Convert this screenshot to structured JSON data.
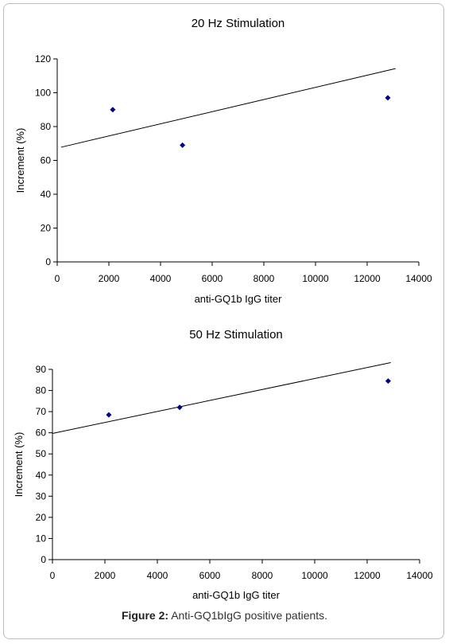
{
  "figure": {
    "caption_label": "Figure 2:",
    "caption_text": "Anti-GQ1bIgG positive patients."
  },
  "chart_data": [
    {
      "type": "scatter",
      "title": "20 Hz Stimulation",
      "xlabel": "anti-GQ1b IgG titer",
      "ylabel": "Increment (%)",
      "xlim": [
        0,
        14000
      ],
      "ylim": [
        0,
        120
      ],
      "xticks": [
        0,
        2000,
        4000,
        6000,
        8000,
        10000,
        12000,
        14000
      ],
      "yticks": [
        0,
        20,
        40,
        60,
        80,
        100,
        120
      ],
      "grid": false,
      "marker_color": "#00008b",
      "points": [
        {
          "x": 2150,
          "y": 90
        },
        {
          "x": 4850,
          "y": 69
        },
        {
          "x": 12800,
          "y": 97
        }
      ],
      "trendline": {
        "x": [
          150,
          13100
        ],
        "y": [
          67.8,
          114.3
        ]
      }
    },
    {
      "type": "scatter",
      "title": "50 Hz Stimulation",
      "xlabel": "anti-GQ1b IgG titer",
      "ylabel": "Increment (%)",
      "xlim": [
        0,
        14000
      ],
      "ylim": [
        0,
        90
      ],
      "xticks": [
        0,
        2000,
        4000,
        6000,
        8000,
        10000,
        12000,
        14000
      ],
      "yticks": [
        0,
        10,
        20,
        30,
        40,
        50,
        60,
        70,
        80,
        90
      ],
      "grid": false,
      "marker_color": "#00008b",
      "points": [
        {
          "x": 2150,
          "y": 68.5
        },
        {
          "x": 4850,
          "y": 72
        },
        {
          "x": 12800,
          "y": 84.5
        }
      ],
      "trendline": {
        "x": [
          0,
          12900
        ],
        "y": [
          59.7,
          93.2
        ]
      }
    }
  ]
}
